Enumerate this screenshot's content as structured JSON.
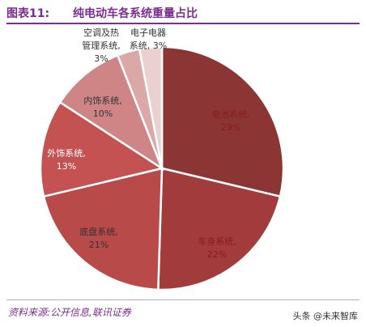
{
  "header": {
    "figure_label": "图表11:",
    "title": "纯电动车各系统重量占比"
  },
  "chart_data": {
    "type": "pie",
    "title": "纯电动车各系统重量占比",
    "start_angle_deg": 0,
    "direction": "clockwise",
    "slices": [
      {
        "label": "电池系统,",
        "value": 29,
        "value_text": "29%",
        "color": "#8b3535",
        "label_color": "#8b1a1a"
      },
      {
        "label": "车身系统,",
        "value": 22,
        "value_text": "22%",
        "color": "#a23c3c",
        "label_color": "#8b1a1a"
      },
      {
        "label": "底盘系统,",
        "value": 21,
        "value_text": "21%",
        "color": "#b84a4a",
        "label_color": "#333333"
      },
      {
        "label": "外饰系统,",
        "value": 13,
        "value_text": "13%",
        "color": "#c45252",
        "label_color": "#ffffff"
      },
      {
        "label": "内饰系统,",
        "value": 10,
        "value_text": "10%",
        "color": "#cf8585",
        "label_color": "#333333"
      },
      {
        "label_lines": [
          "空调及热",
          "管理系统,"
        ],
        "value": 3,
        "value_text": "3%",
        "color": "#dba8a8",
        "label_color": "#333333",
        "outside": true
      },
      {
        "label_lines": [
          "电子电器",
          "系统, 3%"
        ],
        "value": 3,
        "value_text": "",
        "color": "#ebd0d0",
        "label_color": "#333333",
        "outside": true
      }
    ]
  },
  "footer": {
    "source": "资料来源:公开信息,联讯证券",
    "watermark": "头条 @未来智库"
  }
}
